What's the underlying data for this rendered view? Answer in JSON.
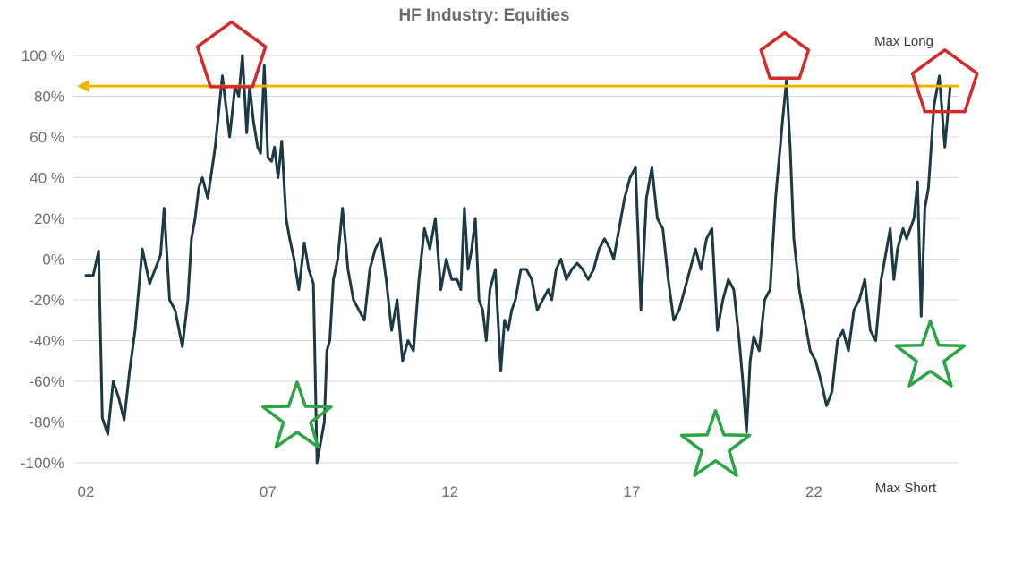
{
  "colors": {
    "series": "#1c3a45",
    "reference_line": "#f2b300",
    "pentagon": "#d32b2b",
    "star": "#2aa444",
    "grid": "#d9d9d9"
  },
  "chart_data": {
    "type": "line",
    "title": "HF Industry: Equities",
    "xlabel": "",
    "ylabel": "",
    "x_tick_labels": [
      "02",
      "07",
      "12",
      "17",
      "22"
    ],
    "x_tick_values": [
      2002,
      2007,
      2012,
      2017,
      2022
    ],
    "xlim": [
      2002,
      2026
    ],
    "y_tick_labels": [
      "100 %",
      "80%",
      "60 %",
      "40 %",
      "20%",
      "0%",
      "-20%",
      "-40%",
      "-60%",
      "-80%",
      "-100%"
    ],
    "y_tick_values": [
      100,
      80,
      60,
      40,
      20,
      0,
      -20,
      -40,
      -60,
      -80,
      -100
    ],
    "ylim": [
      -100,
      100
    ],
    "grid": true,
    "annotations": {
      "max_long": "Max Long",
      "max_short": "Max Short"
    },
    "reference_line": {
      "y": 85,
      "style": "arrow pointing left"
    },
    "highlights": {
      "pentagons": [
        {
          "x": 2006.0,
          "y": 98
        },
        {
          "x": 2021.2,
          "y": 98
        },
        {
          "x": 2025.6,
          "y": 86
        }
      ],
      "stars": [
        {
          "x": 2007.8,
          "y": -78
        },
        {
          "x": 2019.3,
          "y": -92
        },
        {
          "x": 2025.2,
          "y": -48
        }
      ]
    },
    "series": [
      {
        "x": [
          2002.0,
          2002.2,
          2002.35,
          2002.45,
          2002.6,
          2002.75,
          2002.9,
          2003.05,
          2003.2,
          2003.35,
          2003.55,
          2003.75,
          2003.9,
          2004.05,
          2004.15,
          2004.3,
          2004.45,
          2004.65,
          2004.8,
          2004.9,
          2005.0,
          2005.1,
          2005.2,
          2005.35,
          2005.55,
          2005.75,
          2005.95,
          2006.1,
          2006.2,
          2006.3,
          2006.42,
          2006.5,
          2006.6,
          2006.72,
          2006.8,
          2006.9,
          2007.0,
          2007.1,
          2007.18,
          2007.28,
          2007.38,
          2007.5,
          2007.6,
          2007.72,
          2007.85,
          2008.0,
          2008.12,
          2008.25,
          2008.35,
          2008.45,
          2008.55,
          2008.62,
          2008.7,
          2008.8,
          2008.92,
          2009.05,
          2009.2,
          2009.35,
          2009.5,
          2009.65,
          2009.8,
          2009.95,
          2010.1,
          2010.25,
          2010.4,
          2010.55,
          2010.7,
          2010.85,
          2011.0,
          2011.15,
          2011.3,
          2011.45,
          2011.6,
          2011.75,
          2011.9,
          2012.05,
          2012.2,
          2012.3,
          2012.4,
          2012.5,
          2012.6,
          2012.7,
          2012.8,
          2012.9,
          2013.0,
          2013.1,
          2013.25,
          2013.4,
          2013.5,
          2013.6,
          2013.7,
          2013.8,
          2013.95,
          2014.1,
          2014.25,
          2014.4,
          2014.55,
          2014.7,
          2014.8,
          2014.92,
          2015.05,
          2015.2,
          2015.35,
          2015.5,
          2015.65,
          2015.8,
          2015.95,
          2016.1,
          2016.25,
          2016.4,
          2016.5,
          2016.6,
          2016.7,
          2016.8,
          2016.95,
          2017.1,
          2017.25,
          2017.4,
          2017.55,
          2017.7,
          2017.85,
          2018.0,
          2018.15,
          2018.3,
          2018.45,
          2018.6,
          2018.75,
          2018.9,
          2019.05,
          2019.2,
          2019.35,
          2019.5,
          2019.65,
          2019.8,
          2019.95,
          2020.05,
          2020.15,
          2020.25,
          2020.35,
          2020.5,
          2020.65,
          2020.8,
          2020.95,
          2021.05,
          2021.15,
          2021.25,
          2021.35,
          2021.45,
          2021.6,
          2021.75,
          2021.9,
          2022.05,
          2022.2,
          2022.35,
          2022.5,
          2022.65,
          2022.8,
          2022.95,
          2023.1,
          2023.25,
          2023.4,
          2023.55,
          2023.7,
          2023.85,
          2024.0,
          2024.1,
          2024.2,
          2024.3,
          2024.45,
          2024.55,
          2024.65,
          2024.75,
          2024.85,
          2024.95,
          2025.05,
          2025.15,
          2025.3,
          2025.45,
          2025.6,
          2025.75
        ],
        "values": [
          -8,
          -8,
          4,
          -78,
          -86,
          -60,
          -68,
          -79,
          -55,
          -35,
          5,
          -12,
          -5,
          2,
          25,
          -20,
          -25,
          -43,
          -20,
          10,
          20,
          35,
          40,
          30,
          55,
          90,
          60,
          85,
          80,
          100,
          62,
          85,
          68,
          55,
          52,
          95,
          50,
          48,
          55,
          40,
          58,
          20,
          10,
          0,
          -15,
          8,
          -5,
          -12,
          -100,
          -90,
          -80,
          -45,
          -40,
          -10,
          0,
          25,
          -5,
          -20,
          -25,
          -30,
          -5,
          5,
          10,
          -10,
          -35,
          -20,
          -50,
          -40,
          -45,
          -10,
          15,
          5,
          20,
          -15,
          0,
          -10,
          -10,
          -15,
          25,
          -5,
          5,
          20,
          -20,
          -25,
          -40,
          -15,
          -5,
          -55,
          -30,
          -35,
          -25,
          -20,
          -5,
          -5,
          -10,
          -25,
          -20,
          -15,
          -20,
          -5,
          0,
          -10,
          -5,
          -2,
          -5,
          -10,
          -5,
          5,
          10,
          5,
          0,
          10,
          20,
          30,
          40,
          45,
          -25,
          30,
          45,
          20,
          15,
          -10,
          -30,
          -25,
          -15,
          -5,
          5,
          -5,
          10,
          15,
          -35,
          -20,
          -10,
          -15,
          -40,
          -60,
          -85,
          -50,
          -38,
          -45,
          -20,
          -15,
          30,
          50,
          70,
          88,
          55,
          10,
          -15,
          -30,
          -45,
          -50,
          -60,
          -72,
          -65,
          -40,
          -35,
          -45,
          -25,
          -20,
          -10,
          -35,
          -40,
          -10,
          5,
          15,
          -10,
          5,
          15,
          10,
          15,
          20,
          38,
          -28,
          25,
          35,
          75,
          90,
          55,
          85
        ]
      }
    ]
  }
}
